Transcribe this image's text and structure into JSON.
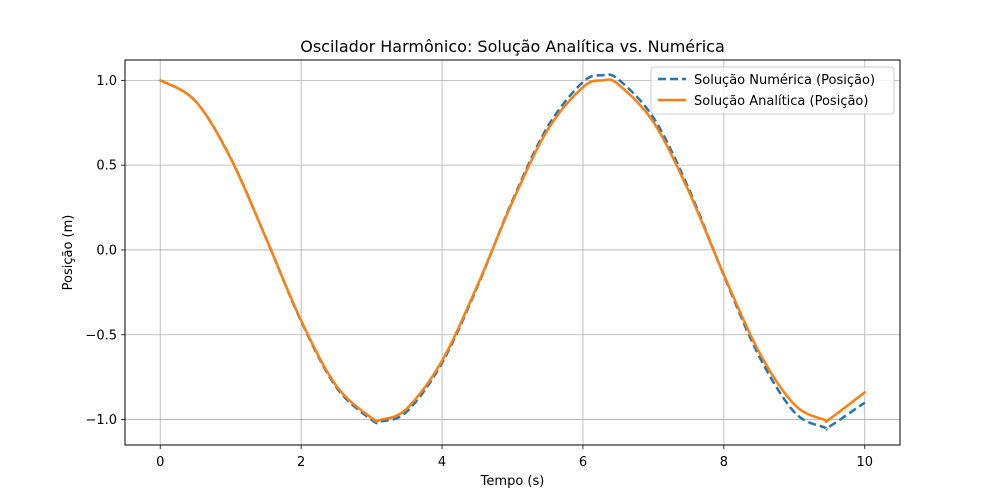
{
  "chart_data": {
    "type": "line",
    "title": "Oscilador Harmônico: Solução Analítica vs. Numérica",
    "xlabel": "Tempo (s)",
    "ylabel": "Posição (m)",
    "xlim": [
      -0.5,
      10.5
    ],
    "ylim": [
      -1.15,
      1.12
    ],
    "xticks": [
      0,
      2,
      4,
      6,
      8,
      10
    ],
    "xtick_labels": [
      "0",
      "2",
      "4",
      "6",
      "8",
      "10"
    ],
    "yticks": [
      -1.0,
      -0.5,
      0.0,
      0.5,
      1.0
    ],
    "ytick_labels": [
      "−1.0",
      "−0.5",
      "0.0",
      "0.5",
      "1.0"
    ],
    "grid": true,
    "legend_position": "top-right",
    "x": [
      0,
      0.5,
      1,
      1.5,
      2,
      2.5,
      3,
      3.14,
      3.5,
      4,
      4.5,
      5,
      5.5,
      6,
      6.28,
      6.5,
      7,
      7.5,
      8,
      8.5,
      9,
      9.42,
      9.5,
      10
    ],
    "series": [
      {
        "name": "Solução Numérica (Posição)",
        "color": "#1f77b4",
        "style": "dashed",
        "values": [
          1.0,
          0.878,
          0.542,
          0.071,
          -0.42,
          -0.81,
          -1.001,
          -1.01,
          -0.953,
          -0.666,
          -0.218,
          0.292,
          0.727,
          0.99,
          1.03,
          1.006,
          0.78,
          0.362,
          -0.151,
          -0.626,
          -0.956,
          -1.045,
          -1.041,
          -0.9
        ]
      },
      {
        "name": "Solução Analítica (Posição)",
        "color": "#ff7f0e",
        "style": "solid",
        "values": [
          1.0,
          0.878,
          0.54,
          0.071,
          -0.416,
          -0.801,
          -0.99,
          -1.0,
          -0.936,
          -0.654,
          -0.211,
          0.284,
          0.709,
          0.96,
          1.0,
          0.977,
          0.754,
          0.347,
          -0.146,
          -0.602,
          -0.911,
          -1.0,
          -0.997,
          -0.839
        ]
      }
    ]
  }
}
